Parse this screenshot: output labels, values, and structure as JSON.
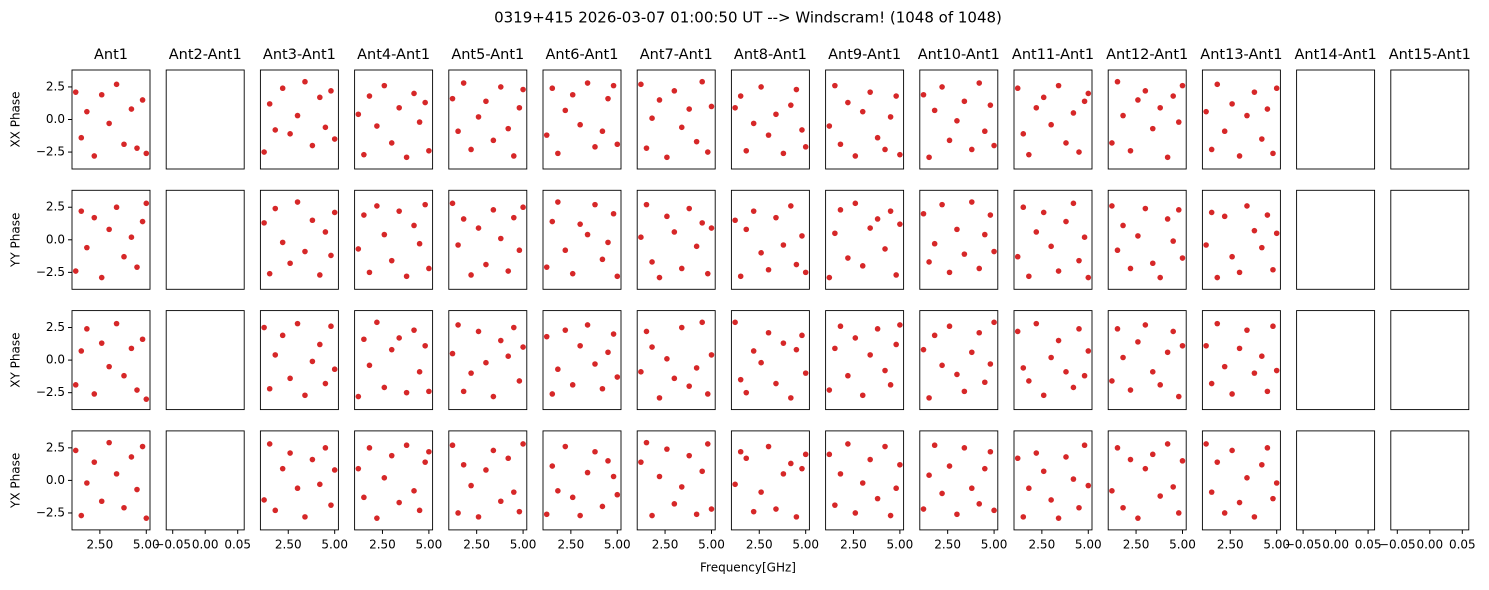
{
  "chart_data": {
    "type": "scatter-grid",
    "title": "0319+415 2026-03-07 01:00:50 UT --> Windscram! (1048 of 1048)",
    "xlabel": "Frequency[GHz]",
    "color": "#d62728",
    "columns": [
      "Ant1",
      "Ant2-Ant1",
      "Ant3-Ant1",
      "Ant4-Ant1",
      "Ant5-Ant1",
      "Ant6-Ant1",
      "Ant7-Ant1",
      "Ant8-Ant1",
      "Ant9-Ant1",
      "Ant10-Ant1",
      "Ant11-Ant1",
      "Ant12-Ant1",
      "Ant13-Ant1",
      "Ant14-Ant1",
      "Ant15-Ant1"
    ],
    "rows": [
      "XX Phase",
      "YY Phase",
      "XY Phase",
      "YX Phase"
    ],
    "x": [
      1.2,
      1.5,
      1.8,
      2.2,
      2.6,
      3.0,
      3.4,
      3.8,
      4.2,
      4.5,
      4.8,
      5.0
    ],
    "xlim": [
      1.0,
      5.2
    ],
    "xticks": [
      {
        "value": 2.5,
        "label": "2.50"
      },
      {
        "value": 5.0,
        "label": "5.00"
      }
    ],
    "empty_xlim": [
      -0.06,
      0.06
    ],
    "empty_xticks": [
      {
        "value": -0.05,
        "label": "−0.05"
      },
      {
        "value": 0,
        "label": "0.00"
      },
      {
        "value": 0.05,
        "label": "0.05"
      }
    ],
    "ylim": [
      -3.8,
      3.8
    ],
    "yticks": [
      {
        "value": -2.5,
        "label": "−2.5"
      },
      {
        "value": 0,
        "label": "0.0"
      },
      2.5
    ],
    "panels": [
      [
        [
          2.1,
          -1.4,
          0.6,
          -2.8,
          1.9,
          -0.3,
          2.7,
          -1.9,
          0.8,
          -2.2,
          1.5,
          -2.6
        ],
        null,
        [
          -2.5,
          1.2,
          -0.8,
          2.4,
          -1.1,
          0.3,
          2.9,
          -2.0,
          1.7,
          -0.6,
          2.2,
          -1.5
        ],
        [
          0.4,
          -2.7,
          1.8,
          -0.5,
          2.6,
          -1.8,
          0.9,
          -2.9,
          2.0,
          -0.2,
          1.3,
          -2.4
        ],
        [
          1.6,
          -0.9,
          2.8,
          -2.3,
          0.2,
          1.4,
          -1.6,
          2.5,
          -0.7,
          -2.8,
          0.9,
          2.3
        ],
        [
          -1.2,
          2.4,
          -2.6,
          0.7,
          1.9,
          -0.4,
          2.8,
          -2.1,
          -0.9,
          1.6,
          2.6,
          -1.9
        ],
        [
          2.7,
          -2.2,
          0.1,
          1.5,
          -2.9,
          2.2,
          -0.6,
          0.8,
          -1.7,
          2.9,
          -2.5,
          1.0
        ],
        [
          0.9,
          1.8,
          -2.4,
          -0.3,
          2.5,
          -1.2,
          0.4,
          -2.6,
          1.1,
          2.3,
          -0.8,
          -2.1
        ],
        [
          -0.5,
          2.6,
          -1.9,
          1.3,
          -2.8,
          0.6,
          2.1,
          -1.4,
          -2.3,
          0.2,
          1.8,
          -2.7
        ],
        [
          1.9,
          -2.9,
          0.7,
          2.5,
          -1.6,
          -0.1,
          1.4,
          -2.3,
          2.8,
          -0.9,
          1.1,
          -2.0
        ],
        [
          2.4,
          -1.1,
          -2.7,
          0.9,
          1.7,
          -0.4,
          2.6,
          -1.8,
          0.5,
          -2.5,
          1.4,
          2.0
        ],
        [
          -1.8,
          2.9,
          0.3,
          -2.4,
          1.5,
          2.2,
          -0.7,
          0.9,
          -2.9,
          1.8,
          -0.2,
          2.6
        ],
        [
          0.6,
          -2.3,
          2.7,
          -0.9,
          1.2,
          -2.8,
          0.3,
          2.1,
          -1.5,
          0.8,
          -2.6,
          2.4
        ],
        null,
        null
      ],
      [
        [
          -2.4,
          2.2,
          -0.6,
          1.7,
          -2.9,
          0.8,
          2.5,
          -1.3,
          0.2,
          -2.1,
          1.4,
          2.8
        ],
        null,
        [
          1.3,
          -2.6,
          2.4,
          -0.2,
          -1.8,
          2.9,
          -0.9,
          1.5,
          -2.7,
          0.6,
          -1.2,
          2.1
        ],
        [
          -0.7,
          1.9,
          -2.5,
          2.6,
          0.4,
          -1.6,
          2.2,
          -2.8,
          1.1,
          -0.3,
          2.7,
          -2.2
        ],
        [
          2.8,
          -0.4,
          1.6,
          -2.7,
          0.9,
          -1.9,
          2.3,
          0.1,
          -2.4,
          1.7,
          -0.8,
          2.5
        ],
        [
          -2.1,
          1.4,
          2.9,
          -0.8,
          -2.6,
          1.2,
          0.4,
          2.7,
          -1.5,
          -0.2,
          2.0,
          -2.8
        ],
        [
          0.2,
          2.7,
          -1.7,
          -2.9,
          1.8,
          0.6,
          -2.2,
          2.4,
          -0.5,
          1.3,
          -2.6,
          0.9
        ],
        [
          1.5,
          -2.8,
          0.8,
          2.2,
          -1.0,
          -2.3,
          1.7,
          -0.4,
          2.6,
          -1.9,
          0.3,
          -2.5
        ],
        [
          -2.9,
          0.5,
          2.3,
          -1.4,
          2.8,
          -2.0,
          0.9,
          1.6,
          -0.7,
          2.2,
          -2.7,
          1.2
        ],
        [
          2.0,
          -1.7,
          -0.3,
          2.7,
          -2.5,
          0.8,
          -1.1,
          2.9,
          -2.2,
          0.4,
          1.9,
          -0.9
        ],
        [
          -1.3,
          2.5,
          -2.8,
          0.6,
          2.1,
          -0.5,
          -2.4,
          1.4,
          2.8,
          -1.6,
          0.2,
          -2.9
        ],
        [
          2.6,
          -0.8,
          1.1,
          -2.2,
          0.3,
          2.4,
          -1.8,
          -2.9,
          1.6,
          -0.1,
          2.3,
          -1.4
        ],
        [
          -0.4,
          2.1,
          -2.9,
          1.8,
          -1.3,
          -2.5,
          2.6,
          0.7,
          -0.6,
          1.9,
          -2.3,
          0.5
        ],
        null,
        null
      ],
      [
        [
          -1.9,
          0.7,
          2.4,
          -2.6,
          1.3,
          -0.5,
          2.8,
          -1.2,
          0.9,
          -2.3,
          1.6,
          -3.0
        ],
        null,
        [
          2.5,
          -2.2,
          0.4,
          1.9,
          -1.4,
          2.8,
          -2.7,
          -0.1,
          1.2,
          -1.8,
          2.6,
          -0.7
        ],
        [
          -2.8,
          1.6,
          -0.4,
          2.9,
          -2.1,
          0.8,
          1.7,
          -2.5,
          2.3,
          -0.9,
          1.1,
          -2.4
        ],
        [
          0.5,
          2.7,
          -2.4,
          -1.0,
          2.2,
          -0.2,
          -2.8,
          1.5,
          0.3,
          2.5,
          -1.6,
          1.0
        ],
        [
          1.8,
          -2.6,
          -0.7,
          2.3,
          -1.9,
          1.1,
          2.7,
          -0.3,
          -2.2,
          0.6,
          2.0,
          -1.3
        ],
        [
          -0.9,
          2.2,
          1.0,
          -2.9,
          0.1,
          -1.4,
          2.5,
          -2.0,
          -0.6,
          2.9,
          -2.6,
          0.4
        ],
        [
          2.9,
          -1.5,
          -2.5,
          0.7,
          -0.2,
          2.1,
          -1.8,
          1.3,
          -2.9,
          0.8,
          1.9,
          -1.0
        ],
        [
          -2.3,
          0.9,
          2.6,
          -1.2,
          1.7,
          -2.7,
          0.4,
          2.4,
          -0.8,
          -1.9,
          1.2,
          2.7
        ],
        [
          0.8,
          -2.9,
          1.9,
          -0.4,
          2.6,
          -1.1,
          -2.4,
          0.6,
          2.1,
          -1.7,
          -0.3,
          2.9
        ],
        [
          2.2,
          -0.6,
          -1.6,
          2.8,
          -2.7,
          0.2,
          1.5,
          -0.9,
          -2.1,
          2.4,
          -1.2,
          0.7
        ],
        [
          -1.6,
          2.4,
          0.2,
          -2.3,
          1.4,
          2.7,
          -0.9,
          -1.9,
          0.6,
          2.2,
          -2.8,
          1.1
        ],
        [
          1.1,
          -1.8,
          2.8,
          -0.5,
          -2.6,
          0.9,
          2.3,
          -1.0,
          0.3,
          -2.4,
          2.6,
          -0.8
        ],
        null,
        null
      ],
      [
        [
          2.3,
          -2.7,
          -0.2,
          1.4,
          -1.6,
          2.9,
          0.5,
          -2.1,
          1.8,
          -0.7,
          2.6,
          -2.9
        ],
        null,
        [
          -1.5,
          2.8,
          -2.3,
          0.9,
          2.1,
          -0.6,
          -2.8,
          1.6,
          -0.3,
          2.5,
          -1.9,
          0.8
        ],
        [
          0.9,
          -1.3,
          2.5,
          -2.9,
          0.2,
          1.9,
          -1.7,
          2.7,
          -0.8,
          -2.3,
          1.4,
          2.2
        ],
        [
          2.7,
          -2.5,
          1.2,
          -0.4,
          -2.8,
          0.8,
          2.3,
          -1.6,
          1.7,
          -0.9,
          -2.4,
          2.8
        ],
        [
          -2.6,
          1.1,
          -0.8,
          2.6,
          -1.3,
          -2.7,
          0.6,
          2.2,
          -2.0,
          1.5,
          0.3,
          -1.1
        ],
        [
          1.4,
          2.9,
          -2.7,
          0.3,
          2.4,
          -1.8,
          -0.5,
          1.9,
          -2.6,
          0.7,
          2.8,
          -2.2
        ],
        [
          -0.3,
          2.2,
          1.7,
          -2.4,
          -0.9,
          2.6,
          -2.2,
          0.5,
          1.3,
          -2.8,
          0.9,
          2.0
        ],
        [
          2.0,
          -1.9,
          0.5,
          2.8,
          -2.5,
          -0.2,
          1.6,
          -1.4,
          2.6,
          -2.7,
          -0.6,
          1.2
        ],
        [
          -2.2,
          0.4,
          2.7,
          -1.0,
          1.1,
          -2.6,
          2.5,
          -0.6,
          -1.8,
          0.9,
          2.2,
          -2.3
        ],
        [
          1.7,
          -2.8,
          -0.6,
          2.1,
          0.7,
          -1.5,
          -2.9,
          1.8,
          0.1,
          -2.1,
          2.7,
          -0.4
        ],
        [
          -0.8,
          2.5,
          -2.1,
          1.6,
          -2.9,
          0.9,
          2.0,
          -1.2,
          2.8,
          -0.5,
          -2.5,
          1.5
        ],
        [
          2.8,
          -0.9,
          1.4,
          -2.5,
          2.3,
          -1.7,
          0.2,
          -2.8,
          1.2,
          2.5,
          -1.4,
          -0.2
        ],
        null,
        null
      ]
    ]
  }
}
